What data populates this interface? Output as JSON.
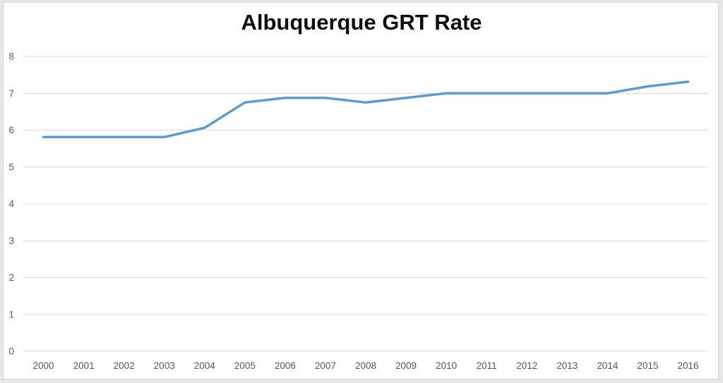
{
  "chart_data": {
    "type": "line",
    "title": "Albuquerque GRT Rate",
    "categories": [
      "2000",
      "2001",
      "2002",
      "2003",
      "2004",
      "2005",
      "2006",
      "2007",
      "2008",
      "2009",
      "2010",
      "2011",
      "2012",
      "2013",
      "2014",
      "2015",
      "2016"
    ],
    "values": [
      5.8125,
      5.8125,
      5.8125,
      5.8125,
      6.0625,
      6.75,
      6.875,
      6.875,
      6.75,
      6.875,
      7.0,
      7.0,
      7.0,
      7.0,
      7.0,
      7.1875,
      7.3125
    ],
    "xlabel": "",
    "ylabel": "",
    "ylim": [
      0,
      8
    ],
    "yticks": [
      0,
      1,
      2,
      3,
      4,
      5,
      6,
      7,
      8
    ],
    "grid": "horizontal",
    "legend": "none",
    "colors": {
      "line": "#5B9BD5",
      "gridline": "#D9D9D9",
      "tick_label": "#595959",
      "title": "#0d0d0d",
      "frame_border": "#D6D6D6",
      "background": "#FFFFFF"
    }
  }
}
